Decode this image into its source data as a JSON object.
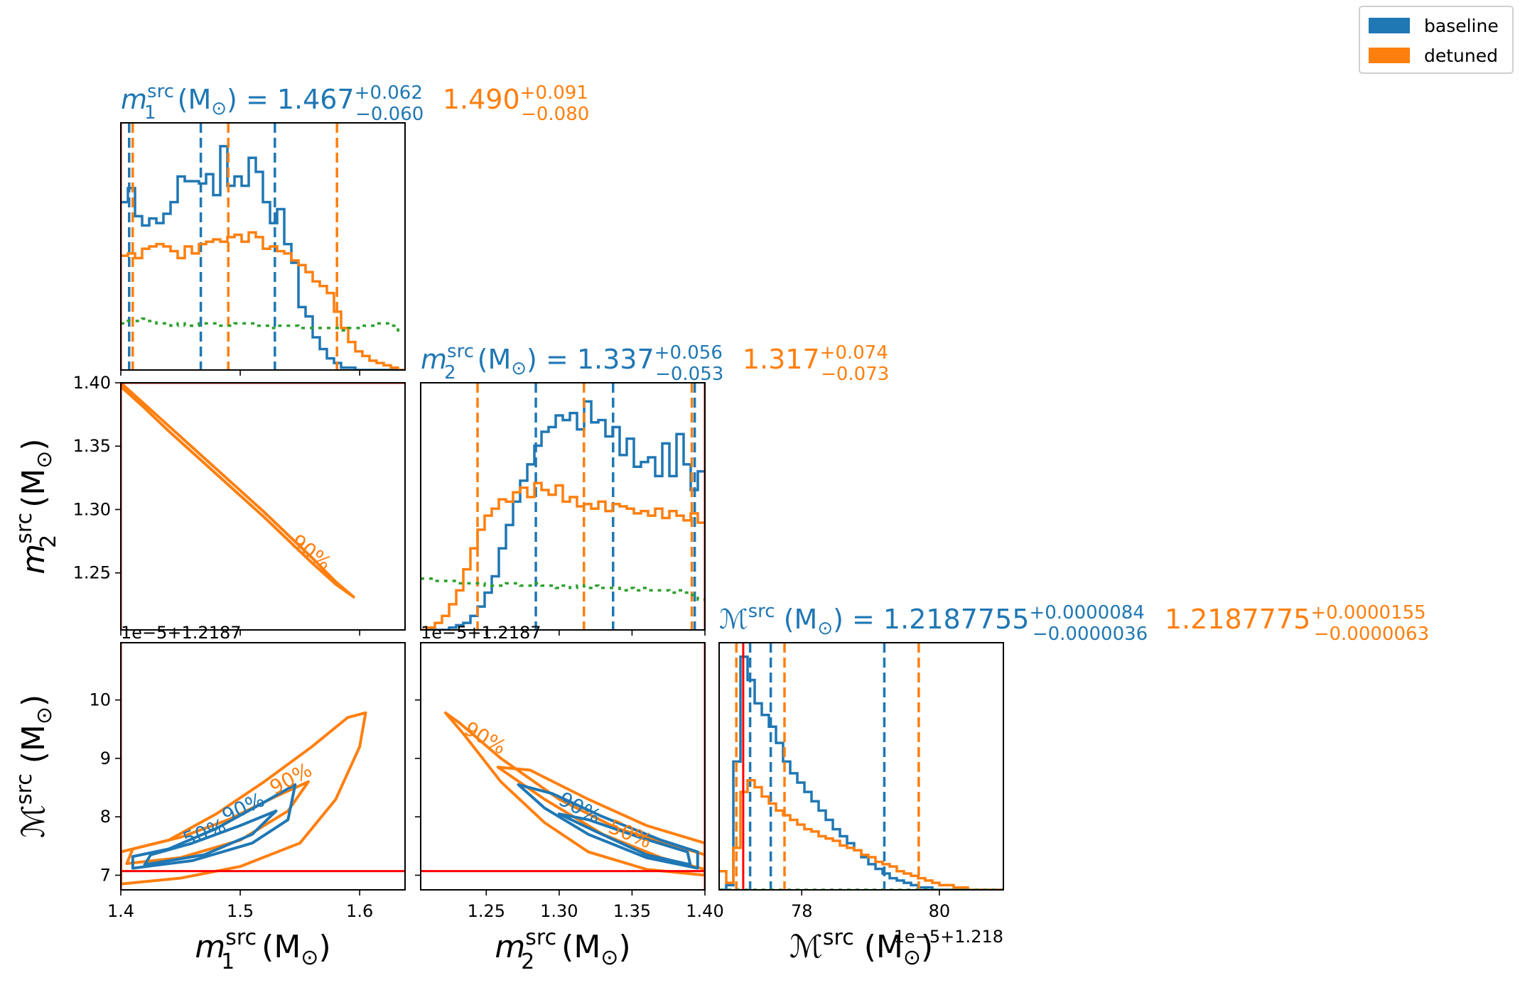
{
  "colors": {
    "baseline": "#1f77b4",
    "detuned": "#ff7f0e",
    "prior": "#2ca02c",
    "injection": "#ff0000"
  },
  "legend": [
    {
      "label": "baseline",
      "color": "#1f77b4"
    },
    {
      "label": "detuned",
      "color": "#ff7f0e"
    }
  ],
  "titles": {
    "m1": {
      "lhs": "m",
      "sub": "1",
      "sup": "src",
      "unit": "(M",
      "unit_close": ")",
      "eq": "= 1.467",
      "plus": "+0.062",
      "minus": "−0.060",
      "val2": "1.490",
      "plus2": "+0.091",
      "minus2": "−0.080"
    },
    "m2": {
      "lhs": "m",
      "sub": "2",
      "sup": "src",
      "unit": "(M",
      "unit_close": ")",
      "eq": "= 1.337",
      "plus": "+0.056",
      "minus": "−0.053",
      "val2": "1.317",
      "plus2": "+0.074",
      "minus2": "−0.073"
    },
    "mc": {
      "lhs": "ℳ",
      "sup": "src",
      "unit": "(M",
      "unit_close": ")",
      "eq": "= 1.2187755",
      "plus": "+0.0000084",
      "minus": "−0.0000036",
      "val2": "1.2187775",
      "plus2": "+0.0000155",
      "minus2": "−0.0000063"
    }
  },
  "axis_labels": {
    "m1": {
      "sym": "m",
      "sub": "1",
      "sup": "src",
      "unit": "(M",
      "unit_close": ")"
    },
    "m2": {
      "sym": "m",
      "sub": "2",
      "sup": "src",
      "unit": "(M",
      "unit_close": ")"
    },
    "mc": {
      "sym": "ℳ",
      "sup": "src",
      "unit": "(M",
      "unit_close": ")"
    }
  },
  "offsets": {
    "mc_y_left": "1e−5+1.2187",
    "mc_y_mid": "1e−5+1.2187",
    "mc_x": "1e−5+1.218"
  },
  "contour_labels": {
    "p90": "90%",
    "p50": "50%"
  },
  "chart_data": {
    "type": "corner",
    "parameters": [
      "m1_src",
      "m2_src",
      "chirp_mass_src"
    ],
    "ranges": {
      "m1": [
        1.4,
        1.638
      ],
      "m2": [
        1.205,
        1.4
      ],
      "mc": [
        6.75,
        10.98
      ],
      "mc_hist": [
        76.8,
        80.93
      ]
    },
    "ticks": {
      "m1": [
        1.4,
        1.5,
        1.6
      ],
      "m1_labels": [
        "1.4",
        "1.5",
        "1.6"
      ],
      "m2": [
        1.25,
        1.3,
        1.35,
        1.4
      ],
      "m2_labels": [
        "1.25",
        "1.30",
        "1.35",
        "1.40"
      ],
      "m2_y": [
        1.25,
        1.3,
        1.35,
        1.4
      ],
      "m2_y_labels": [
        "1.25",
        "1.30",
        "1.35",
        "1.40"
      ],
      "mc_y": [
        7,
        8,
        9,
        10
      ],
      "mc_y_labels": [
        "7",
        "8",
        "9",
        "10"
      ],
      "mc_x": [
        78,
        80
      ],
      "mc_x_labels": [
        "78",
        "80"
      ]
    },
    "injection": {
      "m1": 1.4,
      "m2": 1.4,
      "mc": 7.07,
      "mc_hist": 77.15
    },
    "series": [
      {
        "name": "baseline",
        "quantiles": {
          "m1": [
            1.407,
            1.467,
            1.529
          ],
          "m2": [
            1.284,
            1.337,
            1.393
          ],
          "mc_hist": [
            77.25,
            77.55,
            79.2
          ]
        },
        "hist_m1": [
          0.72,
          0.78,
          0.66,
          0.62,
          0.65,
          0.63,
          0.67,
          0.72,
          0.83,
          0.81,
          0.81,
          0.8,
          0.84,
          0.75,
          0.96,
          0.79,
          0.83,
          0.79,
          0.91,
          0.85,
          0.72,
          0.63,
          0.69,
          0.54,
          0.46,
          0.27,
          0.23,
          0.14,
          0.09,
          0.05,
          0.03,
          0.01,
          0.01,
          0.0,
          0.0,
          0.0,
          0.0,
          0.0,
          0.0,
          0.0
        ],
        "hist_m2": [
          0.0,
          0.0,
          0.0,
          0.0,
          0.01,
          0.02,
          0.03,
          0.06,
          0.1,
          0.16,
          0.23,
          0.35,
          0.45,
          0.55,
          0.64,
          0.71,
          0.79,
          0.85,
          0.87,
          0.92,
          0.9,
          0.93,
          0.86,
          0.98,
          0.89,
          0.9,
          0.83,
          0.87,
          0.75,
          0.82,
          0.7,
          0.72,
          0.74,
          0.66,
          0.8,
          0.66,
          0.84,
          0.71,
          0.6,
          0.68
        ],
        "hist_mc": [
          0.0,
          0.02,
          0.55,
          1.0,
          0.9,
          0.8,
          0.75,
          0.7,
          0.63,
          0.55,
          0.5,
          0.46,
          0.42,
          0.38,
          0.34,
          0.3,
          0.26,
          0.23,
          0.2,
          0.17,
          0.14,
          0.11,
          0.09,
          0.07,
          0.05,
          0.04,
          0.03,
          0.02,
          0.01,
          0.01,
          0.0,
          0.0,
          0.0,
          0.0,
          0.0,
          0.0,
          0.0,
          0.0,
          0.0,
          0.0
        ]
      },
      {
        "name": "detuned",
        "quantiles": {
          "m1": [
            1.41,
            1.49,
            1.581
          ],
          "m2": [
            1.244,
            1.317,
            1.391
          ],
          "mc_hist": [
            77.05,
            77.75,
            79.7
          ]
        },
        "hist_m1": [
          0.49,
          0.5,
          0.48,
          0.52,
          0.53,
          0.54,
          0.53,
          0.51,
          0.48,
          0.53,
          0.5,
          0.54,
          0.55,
          0.56,
          0.55,
          0.57,
          0.58,
          0.55,
          0.59,
          0.57,
          0.52,
          0.53,
          0.51,
          0.5,
          0.47,
          0.45,
          0.42,
          0.38,
          0.36,
          0.33,
          0.25,
          0.18,
          0.12,
          0.08,
          0.06,
          0.04,
          0.03,
          0.02,
          0.01,
          0.0
        ],
        "hist_m2": [
          0.0,
          0.01,
          0.03,
          0.06,
          0.11,
          0.17,
          0.26,
          0.35,
          0.43,
          0.49,
          0.52,
          0.56,
          0.55,
          0.59,
          0.61,
          0.57,
          0.63,
          0.6,
          0.58,
          0.62,
          0.55,
          0.57,
          0.53,
          0.54,
          0.52,
          0.55,
          0.51,
          0.54,
          0.53,
          0.52,
          0.5,
          0.51,
          0.49,
          0.52,
          0.48,
          0.51,
          0.49,
          0.47,
          0.5,
          0.46
        ],
        "hist_mc": [
          0.08,
          0.03,
          0.18,
          0.42,
          0.47,
          0.44,
          0.4,
          0.37,
          0.34,
          0.32,
          0.3,
          0.28,
          0.26,
          0.25,
          0.23,
          0.22,
          0.21,
          0.19,
          0.18,
          0.17,
          0.15,
          0.14,
          0.12,
          0.11,
          0.1,
          0.08,
          0.07,
          0.06,
          0.05,
          0.04,
          0.03,
          0.02,
          0.02,
          0.01,
          0.01,
          0.0,
          0.0,
          0.0,
          0.0,
          0.0
        ]
      },
      {
        "name": "prior",
        "hist_m1": [
          0.2,
          0.21,
          0.21,
          0.22,
          0.21,
          0.2,
          0.2,
          0.19,
          0.2,
          0.19,
          0.19,
          0.2,
          0.2,
          0.2,
          0.19,
          0.19,
          0.2,
          0.2,
          0.2,
          0.19,
          0.19,
          0.18,
          0.19,
          0.19,
          0.19,
          0.18,
          0.18,
          0.18,
          0.18,
          0.18,
          0.18,
          0.17,
          0.18,
          0.18,
          0.19,
          0.19,
          0.2,
          0.2,
          0.19,
          0.17
        ],
        "hist_m2": [
          0.22,
          0.22,
          0.21,
          0.21,
          0.21,
          0.2,
          0.2,
          0.2,
          0.2,
          0.19,
          0.19,
          0.19,
          0.2,
          0.2,
          0.19,
          0.19,
          0.2,
          0.19,
          0.19,
          0.18,
          0.19,
          0.18,
          0.19,
          0.18,
          0.19,
          0.18,
          0.18,
          0.18,
          0.17,
          0.18,
          0.17,
          0.18,
          0.17,
          0.17,
          0.17,
          0.16,
          0.17,
          0.16,
          0.15,
          0.13
        ],
        "hist_mc": [
          0.0,
          0.0,
          0.0,
          0.0,
          0.0,
          0.0,
          0.0,
          0.0,
          0.0,
          0.0,
          0.0,
          0.0,
          0.0,
          0.0,
          0.0,
          0.0,
          0.0,
          0.0,
          0.0,
          0.0,
          0.0,
          0.0,
          0.0,
          0.0,
          0.0,
          0.0,
          0.0,
          0.0,
          0.0,
          0.0,
          0.0,
          0.0,
          0.0,
          0.0,
          0.0,
          0.0,
          0.0,
          0.0,
          0.0,
          0.0
        ]
      }
    ],
    "contours": {
      "m1_m2": {
        "detuned_90": [
          [
            1.4,
            1.4
          ],
          [
            1.42,
            1.383
          ],
          [
            1.44,
            1.366
          ],
          [
            1.46,
            1.349
          ],
          [
            1.48,
            1.332
          ],
          [
            1.5,
            1.315
          ],
          [
            1.52,
            1.298
          ],
          [
            1.54,
            1.28
          ],
          [
            1.56,
            1.262
          ],
          [
            1.58,
            1.243
          ],
          [
            1.595,
            1.231
          ],
          [
            1.58,
            1.241
          ],
          [
            1.56,
            1.258
          ],
          [
            1.54,
            1.276
          ],
          [
            1.52,
            1.294
          ],
          [
            1.5,
            1.311
          ],
          [
            1.48,
            1.328
          ],
          [
            1.46,
            1.345
          ],
          [
            1.44,
            1.362
          ],
          [
            1.42,
            1.38
          ],
          [
            1.4,
            1.397
          ]
        ]
      },
      "m1_mc": {
        "detuned_90": [
          [
            1.4,
            6.85
          ],
          [
            1.45,
            6.95
          ],
          [
            1.5,
            7.15
          ],
          [
            1.55,
            7.55
          ],
          [
            1.58,
            8.3
          ],
          [
            1.6,
            9.2
          ],
          [
            1.605,
            9.78
          ],
          [
            1.59,
            9.7
          ],
          [
            1.56,
            9.2
          ],
          [
            1.52,
            8.6
          ],
          [
            1.48,
            8.05
          ],
          [
            1.44,
            7.6
          ],
          [
            1.4,
            7.4
          ]
        ],
        "detuned_50": [
          [
            1.405,
            7.2
          ],
          [
            1.45,
            7.3
          ],
          [
            1.5,
            7.6
          ],
          [
            1.54,
            8.1
          ],
          [
            1.557,
            8.6
          ],
          [
            1.53,
            8.35
          ],
          [
            1.49,
            7.95
          ],
          [
            1.45,
            7.65
          ],
          [
            1.41,
            7.45
          ],
          [
            1.405,
            7.2
          ]
        ],
        "baseline_90": [
          [
            1.41,
            7.12
          ],
          [
            1.46,
            7.25
          ],
          [
            1.51,
            7.55
          ],
          [
            1.54,
            7.95
          ],
          [
            1.546,
            8.55
          ],
          [
            1.52,
            8.25
          ],
          [
            1.48,
            7.8
          ],
          [
            1.44,
            7.45
          ],
          [
            1.41,
            7.32
          ],
          [
            1.41,
            7.12
          ]
        ],
        "baseline_50": [
          [
            1.42,
            7.18
          ],
          [
            1.47,
            7.35
          ],
          [
            1.51,
            7.7
          ],
          [
            1.53,
            8.1
          ],
          [
            1.5,
            7.85
          ],
          [
            1.46,
            7.55
          ],
          [
            1.425,
            7.35
          ],
          [
            1.42,
            7.18
          ]
        ]
      },
      "m2_mc": {
        "detuned_90": [
          [
            1.4,
            7.0
          ],
          [
            1.36,
            7.1
          ],
          [
            1.32,
            7.4
          ],
          [
            1.29,
            7.9
          ],
          [
            1.26,
            8.6
          ],
          [
            1.235,
            9.4
          ],
          [
            1.222,
            9.78
          ],
          [
            1.232,
            9.6
          ],
          [
            1.26,
            9.0
          ],
          [
            1.3,
            8.3
          ],
          [
            1.34,
            7.8
          ],
          [
            1.38,
            7.5
          ],
          [
            1.4,
            7.35
          ]
        ],
        "detuned_50": [
          [
            1.4,
            7.1
          ],
          [
            1.37,
            7.3
          ],
          [
            1.33,
            7.7
          ],
          [
            1.29,
            8.3
          ],
          [
            1.258,
            8.85
          ],
          [
            1.28,
            8.8
          ],
          [
            1.32,
            8.3
          ],
          [
            1.36,
            7.85
          ],
          [
            1.4,
            7.55
          ]
        ],
        "baseline_90": [
          [
            1.395,
            7.12
          ],
          [
            1.36,
            7.3
          ],
          [
            1.32,
            7.7
          ],
          [
            1.29,
            8.15
          ],
          [
            1.272,
            8.55
          ],
          [
            1.295,
            8.4
          ],
          [
            1.33,
            8.0
          ],
          [
            1.37,
            7.6
          ],
          [
            1.395,
            7.4
          ]
        ],
        "baseline_50": [
          [
            1.39,
            7.18
          ],
          [
            1.36,
            7.35
          ],
          [
            1.325,
            7.75
          ],
          [
            1.3,
            8.05
          ],
          [
            1.32,
            7.95
          ],
          [
            1.355,
            7.65
          ],
          [
            1.388,
            7.4
          ]
        ]
      }
    }
  }
}
